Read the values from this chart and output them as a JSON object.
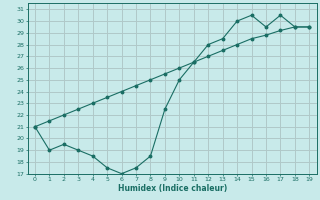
{
  "xlabel": "Humidex (Indice chaleur)",
  "xlim": [
    -0.5,
    19.5
  ],
  "ylim": [
    17,
    31.5
  ],
  "yticks": [
    17,
    18,
    19,
    20,
    21,
    22,
    23,
    24,
    25,
    26,
    27,
    28,
    29,
    30,
    31
  ],
  "xticks": [
    0,
    1,
    2,
    3,
    4,
    5,
    6,
    7,
    8,
    9,
    10,
    11,
    12,
    13,
    14,
    15,
    16,
    17,
    18,
    19
  ],
  "bg_color": "#c8eaea",
  "grid_color": "#b0c8c8",
  "line_color": "#1a6e64",
  "line1_x": [
    0,
    1,
    2,
    3,
    4,
    5,
    6,
    7,
    8,
    9,
    10,
    11,
    12,
    13,
    14,
    15,
    16,
    17,
    18,
    19
  ],
  "line1_y": [
    21.0,
    19.0,
    19.5,
    19.0,
    18.5,
    17.5,
    17.0,
    17.5,
    18.5,
    22.5,
    25.0,
    26.5,
    28.0,
    28.5,
    30.0,
    30.5,
    29.5,
    30.5,
    29.5,
    29.5
  ],
  "line2_x": [
    0,
    1,
    2,
    3,
    4,
    5,
    6,
    7,
    8,
    9,
    10,
    11,
    12,
    13,
    14,
    15,
    16,
    17,
    18,
    19
  ],
  "line2_y": [
    21.0,
    21.5,
    22.0,
    22.5,
    23.0,
    23.5,
    24.0,
    24.5,
    25.0,
    25.5,
    26.0,
    26.5,
    27.0,
    27.5,
    28.0,
    28.5,
    28.8,
    29.2,
    29.5,
    29.5
  ]
}
